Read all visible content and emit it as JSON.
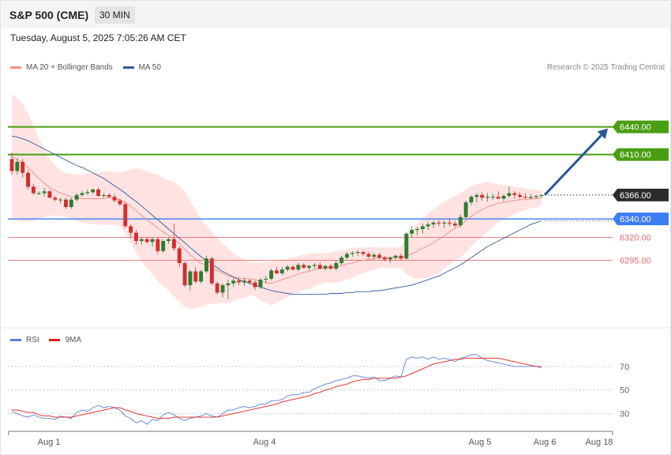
{
  "header": {
    "title": "S&P 500 (CME)",
    "timeframe": "30 MIN",
    "datetime": "Tuesday, August 5, 2025 7:05:26 AM CET"
  },
  "legend": {
    "items": [
      {
        "label": "MA 20 + Bollinger Bands",
        "color": "#f28b82"
      },
      {
        "label": "MA 50",
        "color": "#2f5b9a"
      }
    ],
    "credit": "Research © 2025 Trading Central"
  },
  "rsi_legend": {
    "items": [
      {
        "label": "RSI",
        "color": "#5b7fd6"
      },
      {
        "label": "9MA",
        "color": "#e0211c"
      }
    ]
  },
  "colors": {
    "up": "#2e7d32",
    "down": "#d32f2f",
    "band": "#ffd9d9",
    "resistance": "#4a9e12",
    "support": "#3c7cf5",
    "pivot": "#e46c6c",
    "arrow": "#2b5797",
    "ma20": "#f28b82",
    "ma50": "#2f5b9a",
    "rsi": "#5b7fd6",
    "rsi_ma": "#e0211c"
  },
  "chart_data": [
    {
      "type": "candlestick",
      "title": "",
      "y_range": [
        6226,
        6492
      ],
      "x_labels": [
        "Aug 1",
        "Aug 4",
        "Aug 5",
        "Aug 6",
        "Aug 18"
      ],
      "levels": [
        {
          "value": 6440.0,
          "label": "6440.00",
          "kind": "resistance"
        },
        {
          "value": 6410.0,
          "label": "6410.00",
          "kind": "resistance"
        },
        {
          "value": 6366.0,
          "label": "6366.00",
          "kind": "last"
        },
        {
          "value": 6340.0,
          "label": "6340.00",
          "kind": "support"
        },
        {
          "value": 6320.0,
          "label": "6320.00",
          "kind": "pivot"
        },
        {
          "value": 6295.0,
          "label": "6295.00",
          "kind": "pivot"
        }
      ],
      "target_arrow": {
        "from": 6366,
        "to": 6440
      },
      "ohlc": [
        [
          6405,
          6412,
          6388,
          6392
        ],
        [
          6392,
          6406,
          6388,
          6402
        ],
        [
          6402,
          6405,
          6385,
          6390
        ],
        [
          6390,
          6393,
          6372,
          6375
        ],
        [
          6375,
          6378,
          6366,
          6368
        ],
        [
          6368,
          6370,
          6366,
          6368
        ],
        [
          6368,
          6374,
          6364,
          6370
        ],
        [
          6370,
          6372,
          6363,
          6363
        ],
        [
          6363,
          6365,
          6359,
          6361
        ],
        [
          6361,
          6363,
          6357,
          6361
        ],
        [
          6361,
          6363,
          6351,
          6353
        ],
        [
          6353,
          6363,
          6351,
          6361
        ],
        [
          6361,
          6368,
          6359,
          6366
        ],
        [
          6366,
          6370,
          6364,
          6368
        ],
        [
          6368,
          6372,
          6366,
          6369
        ],
        [
          6369,
          6373,
          6367,
          6372
        ],
        [
          6372,
          6374,
          6364,
          6365
        ],
        [
          6365,
          6368,
          6363,
          6366
        ],
        [
          6366,
          6368,
          6363,
          6364
        ],
        [
          6364,
          6367,
          6358,
          6360
        ],
        [
          6360,
          6362,
          6354,
          6356
        ],
        [
          6356,
          6358,
          6330,
          6332
        ],
        [
          6332,
          6334,
          6320,
          6325
        ],
        [
          6325,
          6328,
          6312,
          6316
        ],
        [
          6316,
          6320,
          6312,
          6318
        ],
        [
          6318,
          6320,
          6313,
          6315
        ],
        [
          6315,
          6320,
          6310,
          6318
        ],
        [
          6318,
          6320,
          6302,
          6305
        ],
        [
          6305,
          6318,
          6303,
          6316
        ],
        [
          6316,
          6320,
          6313,
          6318
        ],
        [
          6318,
          6335,
          6305,
          6308
        ],
        [
          6308,
          6310,
          6288,
          6292
        ],
        [
          6292,
          6294,
          6266,
          6268
        ],
        [
          6268,
          6285,
          6262,
          6283
        ],
        [
          6283,
          6288,
          6270,
          6272
        ],
        [
          6272,
          6285,
          6270,
          6283
        ],
        [
          6283,
          6300,
          6281,
          6297
        ],
        [
          6297,
          6299,
          6268,
          6270
        ],
        [
          6270,
          6272,
          6258,
          6260
        ],
        [
          6260,
          6270,
          6255,
          6268
        ],
        [
          6268,
          6274,
          6253,
          6270
        ],
        [
          6270,
          6276,
          6266,
          6273
        ],
        [
          6273,
          6276,
          6268,
          6271
        ],
        [
          6271,
          6276,
          6267,
          6273
        ],
        [
          6273,
          6275,
          6269,
          6271
        ],
        [
          6271,
          6273,
          6263,
          6266
        ],
        [
          6266,
          6276,
          6264,
          6274
        ],
        [
          6274,
          6278,
          6270,
          6275
        ],
        [
          6275,
          6286,
          6273,
          6284
        ],
        [
          6284,
          6288,
          6280,
          6281
        ],
        [
          6281,
          6288,
          6279,
          6285
        ],
        [
          6285,
          6290,
          6283,
          6288
        ],
        [
          6288,
          6290,
          6284,
          6285
        ],
        [
          6285,
          6292,
          6283,
          6290
        ],
        [
          6290,
          6292,
          6286,
          6287
        ],
        [
          6287,
          6290,
          6284,
          6289
        ],
        [
          6289,
          6292,
          6286,
          6290
        ],
        [
          6290,
          6293,
          6285,
          6286
        ],
        [
          6286,
          6290,
          6284,
          6289
        ],
        [
          6289,
          6291,
          6285,
          6286
        ],
        [
          6286,
          6295,
          6284,
          6292
        ],
        [
          6292,
          6300,
          6290,
          6298
        ],
        [
          6298,
          6304,
          6296,
          6302
        ],
        [
          6302,
          6305,
          6299,
          6303
        ],
        [
          6303,
          6306,
          6300,
          6304
        ],
        [
          6304,
          6306,
          6300,
          6302
        ],
        [
          6302,
          6304,
          6297,
          6299
        ],
        [
          6299,
          6303,
          6296,
          6301
        ],
        [
          6301,
          6303,
          6296,
          6298
        ],
        [
          6298,
          6300,
          6294,
          6296
        ],
        [
          6296,
          6299,
          6292,
          6298
        ],
        [
          6298,
          6301,
          6295,
          6300
        ],
        [
          6300,
          6302,
          6295,
          6297
        ],
        [
          6297,
          6326,
          6296,
          6324
        ],
        [
          6324,
          6332,
          6320,
          6328
        ],
        [
          6328,
          6331,
          6322,
          6329
        ],
        [
          6329,
          6335,
          6324,
          6332
        ],
        [
          6332,
          6337,
          6328,
          6334
        ],
        [
          6334,
          6338,
          6330,
          6336
        ],
        [
          6336,
          6339,
          6332,
          6335
        ],
        [
          6335,
          6338,
          6330,
          6336
        ],
        [
          6336,
          6340,
          6332,
          6335
        ],
        [
          6335,
          6338,
          6331,
          6333
        ],
        [
          6333,
          6345,
          6331,
          6342
        ],
        [
          6342,
          6360,
          6340,
          6358
        ],
        [
          6358,
          6366,
          6355,
          6364
        ],
        [
          6364,
          6368,
          6358,
          6366
        ],
        [
          6366,
          6369,
          6360,
          6363
        ],
        [
          6363,
          6368,
          6359,
          6364
        ],
        [
          6364,
          6367,
          6361,
          6364
        ],
        [
          6364,
          6370,
          6362,
          6362
        ],
        [
          6362,
          6367,
          6359,
          6365
        ],
        [
          6365,
          6375,
          6363,
          6368
        ],
        [
          6368,
          6370,
          6362,
          6366
        ],
        [
          6366,
          6369,
          6362,
          6364
        ],
        [
          6364,
          6368,
          6362,
          6363
        ],
        [
          6363,
          6367,
          6361,
          6364
        ],
        [
          6364,
          6366,
          6362,
          6365
        ],
        [
          6365,
          6367,
          6363,
          6366
        ]
      ],
      "ma20": [
        6408,
        6405,
        6401,
        6396,
        6390,
        6384,
        6379,
        6374,
        6371,
        6368,
        6366,
        6364,
        6363,
        6362,
        6362,
        6362,
        6362,
        6362,
        6363,
        6362,
        6361,
        6358,
        6354,
        6349,
        6344,
        6339,
        6335,
        6330,
        6326,
        6322,
        6318,
        6313,
        6307,
        6301,
        6296,
        6292,
        6290,
        6287,
        6284,
        6281,
        6278,
        6277,
        6276,
        6275,
        6275,
        6274,
        6272,
        6271,
        6270,
        6272,
        6274,
        6276,
        6278,
        6280,
        6282,
        6283,
        6285,
        6286,
        6287,
        6287,
        6288,
        6289,
        6291,
        6292,
        6294,
        6295,
        6296,
        6297,
        6298,
        6298,
        6298,
        6298,
        6298,
        6300,
        6302,
        6305,
        6308,
        6311,
        6314,
        6318,
        6322,
        6326,
        6330,
        6333,
        6338,
        6343,
        6347,
        6350,
        6353,
        6355,
        6357,
        6358,
        6359,
        6360,
        6361,
        6361,
        6362,
        6362,
        6363
      ],
      "bb_upper": [
        6475,
        6472,
        6465,
        6455,
        6442,
        6428,
        6416,
        6405,
        6398,
        6393,
        6390,
        6389,
        6388,
        6388,
        6389,
        6390,
        6390,
        6391,
        6392,
        6391,
        6390,
        6392,
        6394,
        6395,
        6394,
        6392,
        6390,
        6388,
        6385,
        6382,
        6380,
        6376,
        6370,
        6360,
        6349,
        6340,
        6333,
        6326,
        6320,
        6313,
        6308,
        6303,
        6299,
        6296,
        6293,
        6292,
        6292,
        6293,
        6294,
        6295,
        6296,
        6297,
        6298,
        6300,
        6301,
        6302,
        6303,
        6303,
        6303,
        6304,
        6305,
        6306,
        6307,
        6308,
        6309,
        6309,
        6309,
        6310,
        6309,
        6309,
        6309,
        6309,
        6310,
        6320,
        6328,
        6335,
        6341,
        6346,
        6350,
        6355,
        6358,
        6362,
        6365,
        6368,
        6372,
        6376,
        6378,
        6379,
        6380,
        6379,
        6378,
        6377,
        6376,
        6375,
        6374,
        6373,
        6372,
        6372,
        6371
      ],
      "bb_lower": [
        6341,
        6338,
        6337,
        6337,
        6338,
        6340,
        6342,
        6343,
        6344,
        6343,
        6342,
        6339,
        6338,
        6336,
        6335,
        6334,
        6334,
        6333,
        6334,
        6333,
        6332,
        6324,
        6314,
        6303,
        6294,
        6286,
        6280,
        6272,
        6267,
        6262,
        6256,
        6250,
        6244,
        6242,
        6243,
        6244,
        6247,
        6248,
        6248,
        6249,
        6248,
        6251,
        6253,
        6254,
        6257,
        6256,
        6252,
        6249,
        6246,
        6249,
        6252,
        6255,
        6258,
        6260,
        6263,
        6264,
        6267,
        6269,
        6271,
        6270,
        6271,
        6272,
        6275,
        6276,
        6279,
        6281,
        6283,
        6284,
        6287,
        6287,
        6287,
        6287,
        6286,
        6280,
        6276,
        6275,
        6275,
        6276,
        6278,
        6281,
        6286,
        6290,
        6295,
        6298,
        6304,
        6310,
        6316,
        6321,
        6326,
        6331,
        6336,
        6339,
        6342,
        6345,
        6348,
        6349,
        6352,
        6352,
        6355
      ],
      "ma50": [
        6430,
        6429,
        6427,
        6425,
        6422,
        6419,
        6416,
        6413,
        6410,
        6407,
        6404,
        6401,
        6398,
        6396,
        6393,
        6390,
        6387,
        6384,
        6380,
        6376,
        6372,
        6368,
        6363,
        6359,
        6354,
        6349,
        6344,
        6339,
        6334,
        6329,
        6324,
        6319,
        6314,
        6309,
        6304,
        6299,
        6295,
        6291,
        6287,
        6283,
        6280,
        6277,
        6274,
        6272,
        6270,
        6268,
        6266,
        6264,
        6262,
        6261,
        6260,
        6259,
        6258,
        6258,
        6258,
        6258,
        6258,
        6258,
        6258,
        6259,
        6259,
        6259,
        6260,
        6260,
        6261,
        6261,
        6261,
        6262,
        6262,
        6263,
        6264,
        6265,
        6266,
        6267,
        6268,
        6270,
        6272,
        6274,
        6276,
        6278,
        6281,
        6284,
        6287,
        6290,
        6294,
        6298,
        6302,
        6306,
        6310,
        6313,
        6316,
        6319,
        6322,
        6325,
        6328,
        6331,
        6334,
        6336,
        6338
      ]
    },
    {
      "type": "line",
      "title": "",
      "y_range": [
        19,
        86
      ],
      "y_ticks": [
        30,
        50,
        70
      ],
      "series": [
        {
          "name": "RSI",
          "values": [
            32,
            30,
            28,
            27,
            29,
            27,
            26,
            26,
            25,
            28,
            27,
            26,
            31,
            33,
            32,
            35,
            37,
            35,
            36,
            35,
            33,
            28,
            26,
            22,
            24,
            21,
            25,
            24,
            29,
            31,
            29,
            26,
            24,
            26,
            27,
            28,
            30,
            28,
            27,
            30,
            33,
            33,
            35,
            36,
            35,
            36,
            38,
            38,
            41,
            41,
            42,
            45,
            46,
            46,
            48,
            48,
            51,
            53,
            55,
            56,
            58,
            59,
            60,
            62,
            62,
            61,
            60,
            61,
            58,
            58,
            60,
            62,
            61,
            76,
            78,
            77,
            78,
            76,
            78,
            76,
            77,
            76,
            74,
            77,
            78,
            80,
            80,
            77,
            75,
            74,
            73,
            72,
            71,
            70,
            70,
            70,
            70,
            70,
            69
          ]
        },
        {
          "name": "9MA",
          "values": [
            33,
            33,
            32,
            31,
            31,
            29,
            28,
            28,
            27,
            27,
            27,
            27,
            28,
            29,
            30,
            31,
            32,
            33,
            34,
            35,
            35,
            33,
            32,
            30,
            29,
            28,
            27,
            26,
            26,
            26,
            27,
            27,
            27,
            27,
            27,
            27,
            27,
            27,
            27,
            28,
            29,
            30,
            31,
            32,
            33,
            34,
            35,
            36,
            37,
            38,
            40,
            41,
            42,
            43,
            44,
            45,
            47,
            48,
            50,
            51,
            53,
            54,
            55,
            57,
            58,
            59,
            59,
            60,
            60,
            60,
            60,
            60,
            61,
            62,
            64,
            66,
            68,
            70,
            72,
            73,
            74,
            75,
            76,
            76,
            77,
            77,
            77,
            77,
            77,
            77,
            77,
            76,
            75,
            74,
            73,
            72,
            71,
            70,
            70
          ]
        }
      ]
    }
  ]
}
